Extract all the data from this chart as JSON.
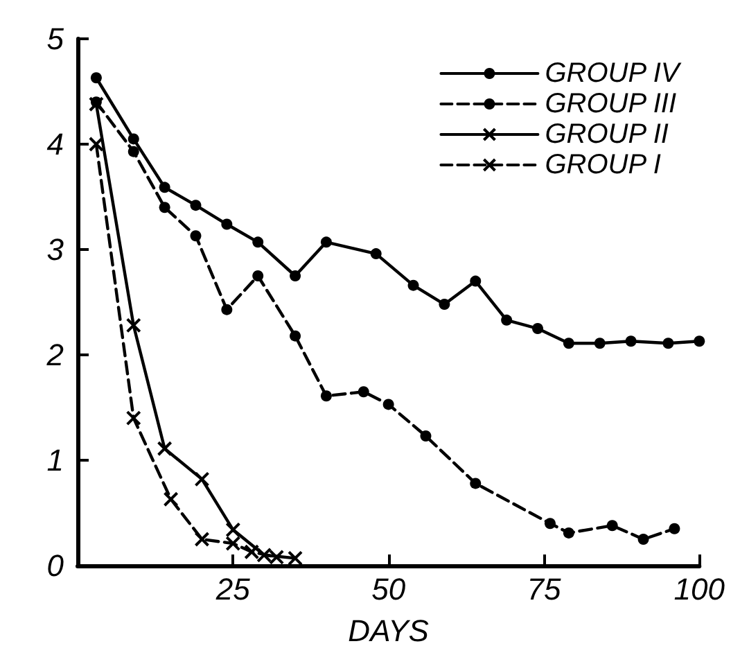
{
  "chart_data": {
    "type": "line",
    "xlabel": "DAYS",
    "xlim": [
      0,
      100
    ],
    "xticks": [
      25,
      50,
      75,
      100
    ],
    "ylim": [
      0,
      5
    ],
    "yticks": [
      0,
      1,
      2,
      3,
      4,
      5
    ],
    "grid": false,
    "legend": "top right",
    "series": [
      {
        "name": "GROUP IV",
        "color": "#000000",
        "marker": "circle",
        "line_style": "solid",
        "x": [
          3,
          9,
          14,
          19,
          24,
          29,
          35,
          40,
          48,
          54,
          59,
          64,
          69,
          74,
          79,
          84,
          89,
          95,
          100
        ],
        "values": [
          4.63,
          4.05,
          3.59,
          3.42,
          3.24,
          3.07,
          2.75,
          3.07,
          2.96,
          2.66,
          2.48,
          2.7,
          2.33,
          2.25,
          2.11,
          2.11,
          2.13,
          2.11,
          2.13
        ]
      },
      {
        "name": "GROUP III",
        "color": "#000000",
        "marker": "circle",
        "line_style": "dashed",
        "x": [
          3,
          9,
          14,
          19,
          24,
          29,
          35,
          40,
          46,
          50,
          56,
          64,
          76,
          79,
          86,
          91,
          96
        ],
        "values": [
          4.4,
          3.93,
          3.4,
          3.13,
          2.43,
          2.75,
          2.18,
          1.61,
          1.65,
          1.53,
          1.23,
          0.78,
          0.4,
          0.31,
          0.38,
          0.25,
          0.35
        ]
      },
      {
        "name": "GROUP II",
        "color": "#000000",
        "marker": "cross",
        "line_style": "solid",
        "x": [
          3,
          9,
          14,
          20,
          25,
          30,
          35
        ],
        "values": [
          4.38,
          2.28,
          1.11,
          0.82,
          0.34,
          0.1,
          0.07
        ]
      },
      {
        "name": "GROUP I",
        "color": "#000000",
        "marker": "cross",
        "line_style": "dashed",
        "x": [
          3,
          9,
          15,
          20,
          25,
          28,
          32
        ],
        "values": [
          4.0,
          1.4,
          0.63,
          0.25,
          0.21,
          0.13,
          0.08
        ]
      }
    ]
  }
}
